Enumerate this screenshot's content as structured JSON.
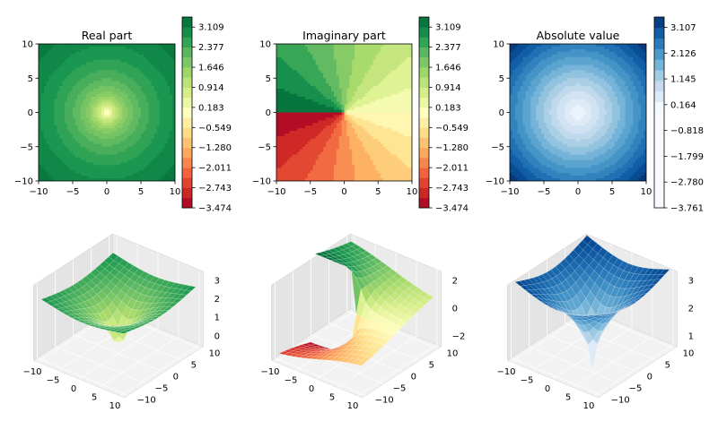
{
  "chart_data": [
    {
      "type": "heatmap",
      "panel": "contour",
      "title": "Real part",
      "quantity": "real",
      "x_range": [
        -10,
        10
      ],
      "y_range": [
        -10,
        10
      ],
      "x_ticks": [
        -10,
        -5,
        0,
        5,
        10
      ],
      "y_ticks": [
        -10,
        -5,
        0,
        5,
        10
      ],
      "colormap": "RdYlGn",
      "colorbar_range": [
        -3.474,
        3.474
      ],
      "colorbar_ticks": [
        "3.109",
        "2.377",
        "1.646",
        "0.914",
        "0.183",
        "−0.549",
        "−1.280",
        "−2.011",
        "−2.743",
        "−3.474"
      ],
      "colorbar_values": [
        3.109,
        2.377,
        1.646,
        0.914,
        0.183,
        -0.549,
        -1.28,
        -2.011,
        -2.743,
        -3.474
      ]
    },
    {
      "type": "heatmap",
      "panel": "contour",
      "title": "Imaginary part",
      "quantity": "imag",
      "x_range": [
        -10,
        10
      ],
      "y_range": [
        -10,
        10
      ],
      "x_ticks": [
        -10,
        -5,
        0,
        5,
        10
      ],
      "y_ticks": [
        -10,
        -5,
        0,
        5,
        10
      ],
      "colormap": "RdYlGn",
      "colorbar_range": [
        -3.474,
        3.474
      ],
      "colorbar_ticks": [
        "3.109",
        "2.377",
        "1.646",
        "0.914",
        "0.183",
        "−0.549",
        "−1.280",
        "−2.011",
        "−2.743",
        "−3.474"
      ],
      "colorbar_values": [
        3.109,
        2.377,
        1.646,
        0.914,
        0.183,
        -0.549,
        -1.28,
        -2.011,
        -2.743,
        -3.474
      ]
    },
    {
      "type": "heatmap",
      "panel": "contour",
      "title": "Absolute value",
      "quantity": "abs",
      "x_range": [
        -10,
        10
      ],
      "y_range": [
        -10,
        10
      ],
      "x_ticks": [
        -10,
        -5,
        0,
        5,
        10
      ],
      "y_ticks": [
        -10,
        -5,
        0,
        5,
        10
      ],
      "colormap": "Blues",
      "colorbar_range": [
        -3.761,
        3.5
      ],
      "colorbar_ticks": [
        "3.107",
        "2.126",
        "1.145",
        "0.164",
        "−0.818",
        "−1.799",
        "−2.780",
        "−3.761"
      ],
      "colorbar_values": [
        3.107,
        2.126,
        1.145,
        0.164,
        -0.818,
        -1.799,
        -2.78,
        -3.761
      ]
    },
    {
      "type": "surface",
      "panel": "surface3d",
      "quantity": "real",
      "colormap": "RdYlGn",
      "x_ticks": [
        "−10",
        "−5",
        "0",
        "5",
        "10"
      ],
      "y_ticks": [
        "−10",
        "−5",
        "0",
        "5",
        "10"
      ],
      "z_ticks": [
        "0",
        "1",
        "2",
        "3"
      ],
      "z_values": [
        0,
        1,
        2,
        3
      ]
    },
    {
      "type": "surface",
      "panel": "surface3d",
      "quantity": "imag",
      "colormap": "RdYlGn",
      "x_ticks": [
        "−10",
        "−5",
        "0",
        "5",
        "10"
      ],
      "y_ticks": [
        "−10",
        "−5",
        "0",
        "5",
        "10"
      ],
      "z_ticks": [
        "−2",
        "0",
        "2"
      ],
      "z_values": [
        -2,
        0,
        2
      ]
    },
    {
      "type": "surface",
      "panel": "surface3d",
      "quantity": "abs",
      "colormap": "Blues",
      "x_ticks": [
        "−10",
        "−5",
        "0",
        "5",
        "10"
      ],
      "y_ticks": [
        "−10",
        "−5",
        "0",
        "5",
        "10"
      ],
      "z_ticks": [
        "1",
        "2",
        "3"
      ],
      "z_values": [
        1,
        2,
        3
      ]
    }
  ]
}
